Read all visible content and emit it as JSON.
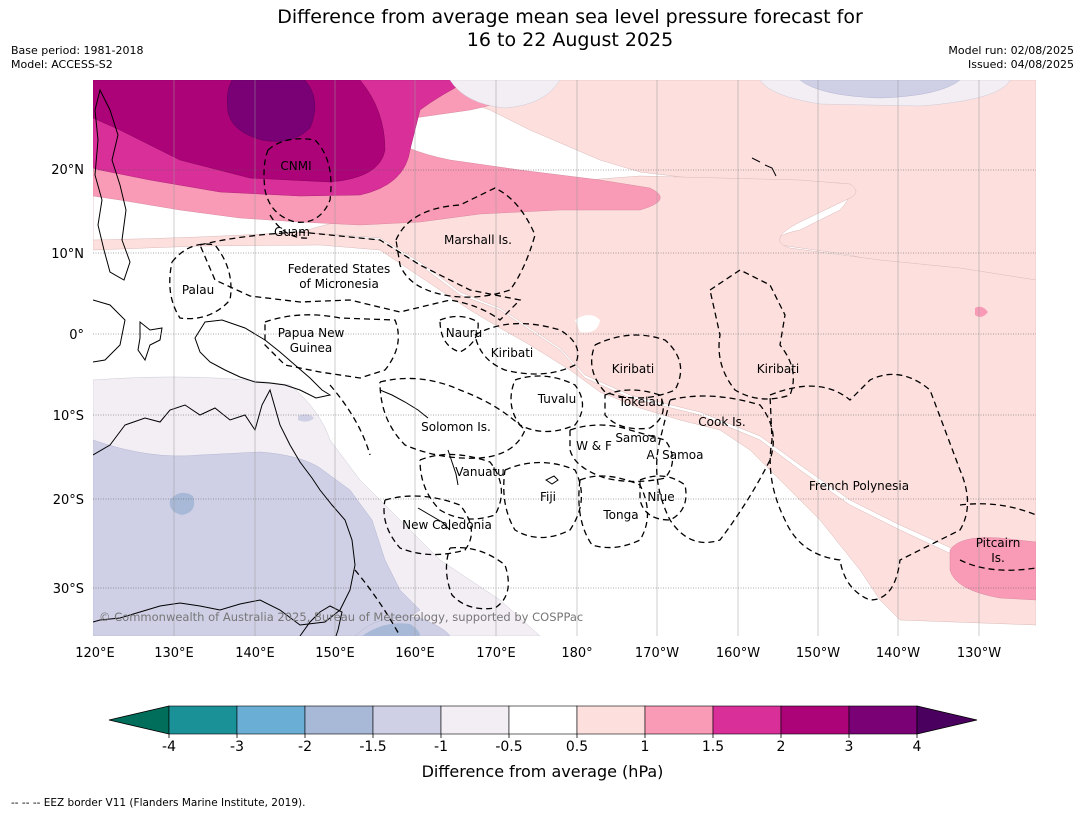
{
  "header": {
    "title_line1": "Difference from average mean sea level pressure forecast for",
    "title_line2": "16 to 22 August 2025",
    "base_period": "Base period: 1981-2018",
    "model": "Model: ACCESS-S2",
    "model_run": "Model run: 02/08/2025",
    "issued": "Issued: 04/08/2025"
  },
  "map": {
    "copyright": "© Commonwealth of Australia 2025, Bureau of Meteorology, supported by COSPPac",
    "lon_ticks": [
      "120°E",
      "130°E",
      "140°E",
      "150°E",
      "160°E",
      "170°E",
      "180°",
      "170°W",
      "160°W",
      "150°W",
      "140°W",
      "130°W"
    ],
    "lat_ticks": [
      "20°N",
      "10°N",
      "0°",
      "10°S",
      "20°S",
      "30°S"
    ],
    "regions": {
      "cnmi": "CNMI",
      "guam": "Guam",
      "marshall": "Marshall Is.",
      "fsm1": "Federated States",
      "fsm2": "of Micronesia",
      "palau": "Palau",
      "png1": "Papua New",
      "png2": "Guinea",
      "nauru": "Nauru",
      "kiribati_w": "Kiribati",
      "kiribati_c": "Kiribati",
      "kiribati_e": "Kiribati",
      "tuvalu": "Tuvalu",
      "tokelau": "Tokelau",
      "cook": "Cook Is.",
      "solomon": "Solomon Is.",
      "wf": "W & F",
      "samoa": "Samoa",
      "asamoa": "A. Samoa",
      "vanuatu": "Vanuatu",
      "fiji": "Fiji",
      "niue": "Niue",
      "tonga": "Tonga",
      "newcal": "New Caledonia",
      "frpoly": "French Polynesia",
      "pitcairn1": "Pitcairn",
      "pitcairn2": "Is."
    }
  },
  "colorbar": {
    "ticks": [
      "-4",
      "-3",
      "-2",
      "-1.5",
      "-1",
      "-0.5",
      "0.5",
      "1",
      "1.5",
      "2",
      "3",
      "4"
    ],
    "colors": [
      "#1a9097",
      "#6aaed6",
      "#a7b9d7",
      "#cfd0e6",
      "#f2eef4",
      "#ffffff",
      "#fde0de",
      "#f99bb6",
      "#d92f98",
      "#ad0378",
      "#790075"
    ],
    "under_color": "#006e5a",
    "over_color": "#4a005e",
    "label": "Difference from average (hPa)"
  },
  "footnote": "--  --  -- EEZ border V11 (Flanders Marine Institute, 2019)."
}
